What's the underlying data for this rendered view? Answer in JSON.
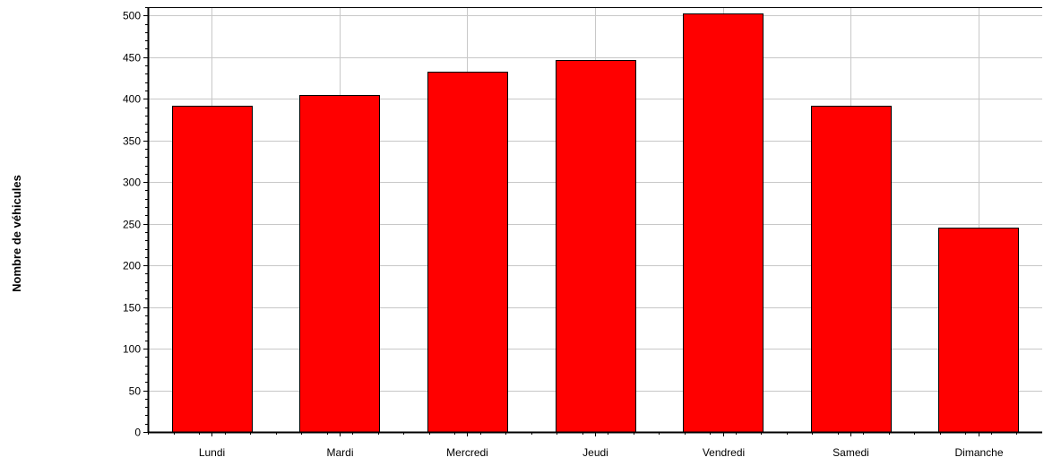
{
  "chart_data": {
    "type": "bar",
    "title": "",
    "xlabel": "",
    "ylabel": "Nombre de véhicules",
    "categories": [
      "Lundi",
      "Mardi",
      "Mercredi",
      "Jeudi",
      "Vendredi",
      "Samedi",
      "Dimanche"
    ],
    "values": [
      392,
      405,
      432,
      447,
      503,
      392,
      245
    ],
    "ylim": [
      0,
      510
    ],
    "yticks": [
      0,
      50,
      100,
      150,
      200,
      250,
      300,
      350,
      400,
      450,
      500
    ],
    "grid": true,
    "bar_color": "#ff0000",
    "grid_color": "#c8c8c8"
  }
}
